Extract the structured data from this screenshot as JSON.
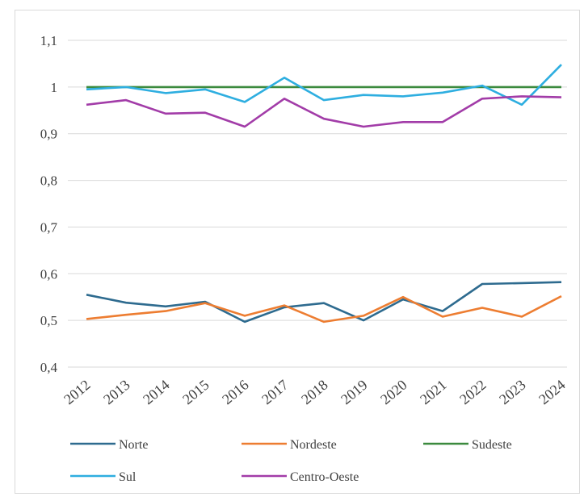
{
  "chart_data": {
    "type": "line",
    "title": "",
    "xlabel": "",
    "ylabel": "",
    "categories": [
      "2012",
      "2013",
      "2014",
      "2015",
      "2016",
      "2017",
      "2018",
      "2019",
      "2020",
      "2021",
      "2022",
      "2023",
      "2024"
    ],
    "ylim": [
      0.4,
      1.1
    ],
    "yticks": [
      0.4,
      0.5,
      0.6,
      0.7,
      0.8,
      0.9,
      1.0,
      1.1
    ],
    "ytick_labels": [
      "0,4",
      "0,5",
      "0,6",
      "0,7",
      "0,8",
      "0,9",
      "1",
      "1,1"
    ],
    "grid": true,
    "legend_position": "bottom",
    "series": [
      {
        "name": "Norte",
        "color": "#2e6b8f",
        "values": [
          0.555,
          0.538,
          0.53,
          0.54,
          0.497,
          0.528,
          0.537,
          0.5,
          0.545,
          0.52,
          0.578,
          0.58,
          0.582
        ]
      },
      {
        "name": "Nordeste",
        "color": "#ed7d31",
        "values": [
          0.503,
          0.512,
          0.52,
          0.537,
          0.51,
          0.532,
          0.497,
          0.51,
          0.55,
          0.508,
          0.527,
          0.508,
          0.552
        ]
      },
      {
        "name": "Sudeste",
        "color": "#3b8a3e",
        "values": [
          1.0,
          1.0,
          1.0,
          1.0,
          1.0,
          1.0,
          1.0,
          1.0,
          1.0,
          1.0,
          1.0,
          1.0,
          1.0
        ]
      },
      {
        "name": "Sul",
        "color": "#2eaee0",
        "values": [
          0.995,
          1.0,
          0.987,
          0.995,
          0.968,
          1.02,
          0.972,
          0.983,
          0.98,
          0.988,
          1.003,
          0.962,
          1.048
        ]
      },
      {
        "name": "Centro-Oeste",
        "color": "#a23ca8",
        "values": [
          0.962,
          0.972,
          0.943,
          0.945,
          0.915,
          0.975,
          0.932,
          0.915,
          0.925,
          0.925,
          0.975,
          0.98,
          0.978
        ]
      }
    ]
  }
}
